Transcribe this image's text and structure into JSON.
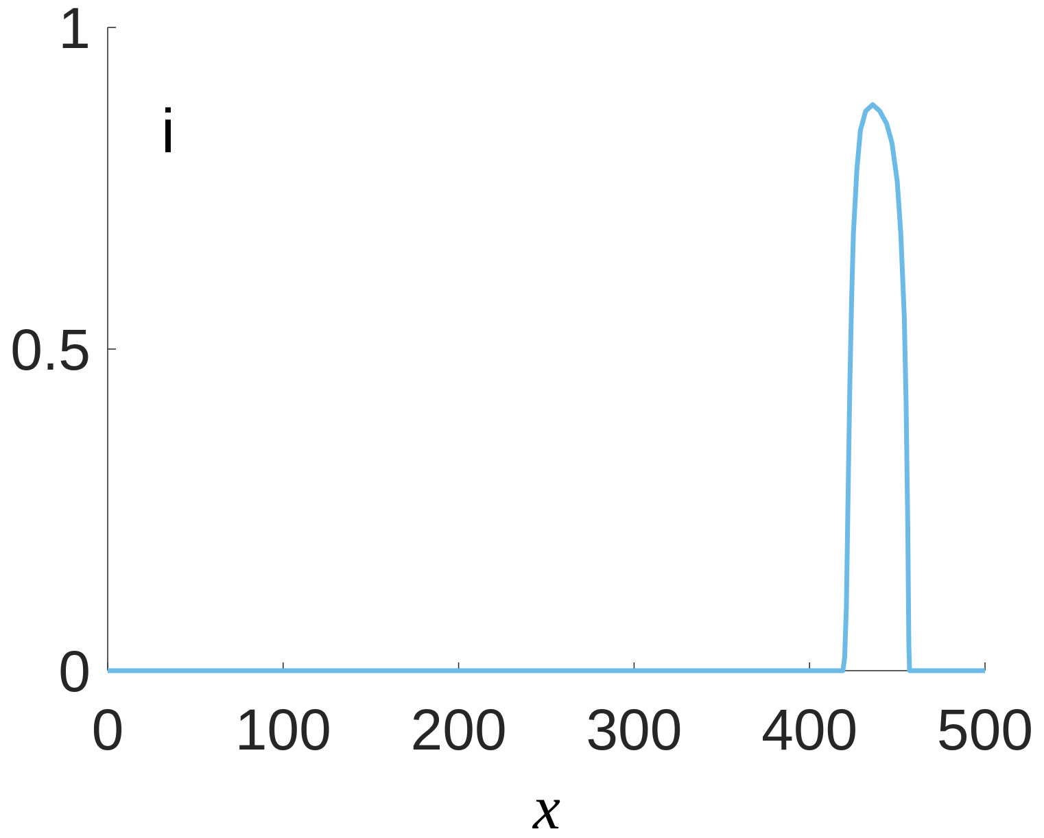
{
  "chart_data": {
    "type": "line",
    "annotation": "i",
    "xlabel": "x",
    "x": [
      0,
      419,
      420,
      421,
      422,
      423,
      424,
      425,
      427,
      429,
      432,
      436,
      440,
      444,
      447,
      450,
      452,
      454,
      455,
      456,
      456.6,
      457,
      500
    ],
    "series": [
      {
        "color": "#6bbbe6",
        "values": [
          0,
          0,
          0.02,
          0.1,
          0.28,
          0.45,
          0.58,
          0.68,
          0.78,
          0.84,
          0.87,
          0.88,
          0.87,
          0.85,
          0.82,
          0.76,
          0.68,
          0.55,
          0.42,
          0.22,
          0.04,
          0,
          0
        ]
      }
    ],
    "xlim": [
      0,
      500
    ],
    "ylim": [
      0,
      1
    ],
    "xticks": [
      0,
      100,
      200,
      300,
      400,
      500
    ],
    "yticks": [
      0,
      0.5,
      1
    ],
    "grid": false
  }
}
